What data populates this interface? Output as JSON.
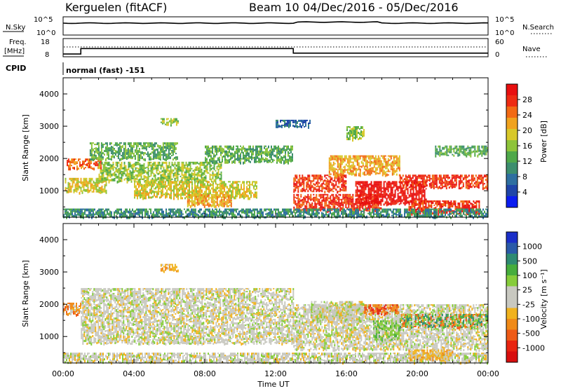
{
  "header": {
    "station": "Kerguelen (fitACF)",
    "beam": "Beam 10",
    "date_range": "04/Dec/2016 - 05/Dec/2016"
  },
  "nsky_panel": {
    "label": "N.Sky",
    "left_ticks": [
      "10^5",
      "10^0"
    ],
    "right_ticks": [
      "10^5",
      "10^0"
    ],
    "right_label": "N.Search"
  },
  "freq_panel": {
    "label_line1": "Freq.",
    "label_line2": "[MHz]",
    "left_ticks": [
      "18",
      "8"
    ],
    "right_ticks": [
      "60",
      "0"
    ],
    "right_label": "Nave"
  },
  "cpid": {
    "label": "CPID",
    "value": "normal (fast) -151"
  },
  "x_axis": {
    "ticks": [
      "00:00",
      "04:00",
      "08:00",
      "12:00",
      "16:00",
      "20:00",
      "00:00"
    ],
    "label": "Time UT"
  },
  "power_panel": {
    "ylabel": "Slant Range [km]",
    "yticks": [
      "4000",
      "3000",
      "2000",
      "1000"
    ],
    "colorbar_label": "Power [dB]",
    "colorbar_ticks": [
      "28",
      "24",
      "20",
      "16",
      "12",
      "8",
      "4"
    ],
    "colors": [
      "#0b1cf0",
      "#1f45a8",
      "#2e6fa0",
      "#3c8e6e",
      "#4fa84a",
      "#8ec43a",
      "#d8c82a",
      "#f0a21e",
      "#f26a14",
      "#ee2b12",
      "#e80f0f"
    ]
  },
  "velocity_panel": {
    "ylabel": "Slant Range [km]",
    "yticks": [
      "4000",
      "3000",
      "2000",
      "1000"
    ],
    "colorbar_label": "Velocity [m s⁻¹]",
    "colorbar_ticks": [
      "1000",
      "500",
      "100",
      "25",
      "-25",
      "-100",
      "-500",
      "-1000"
    ],
    "colors": [
      "#1b2fc8",
      "#2a5aa8",
      "#2e8a72",
      "#46ad3c",
      "#86cc3a",
      "#c8c8c0",
      "#c8c8c0",
      "#f0b21e",
      "#f08a18",
      "#ee5a16",
      "#e82410",
      "#d80e0e"
    ]
  },
  "chart_data": {
    "type": "heatmap",
    "title": "Kerguelen (fitACF) Beam 10 04/Dec/2016 - 05/Dec/2016",
    "xlabel": "Time UT",
    "ylabel": "Slant Range [km]",
    "xlim_hours": [
      0,
      24
    ],
    "ylim_km": [
      180,
      4500
    ],
    "frequency_mhz": [
      {
        "from_hour": 0,
        "to_hour": 1,
        "value": 9.5
      },
      {
        "from_hour": 1,
        "to_hour": 13,
        "value": 12.5
      },
      {
        "from_hour": 13,
        "to_hour": 24,
        "value": 10
      }
    ],
    "power_regions": [
      {
        "t0": 0.2,
        "t1": 2.2,
        "r0": 1700,
        "r1": 2000,
        "level": 8
      },
      {
        "t0": 0.1,
        "t1": 2.5,
        "r0": 950,
        "r1": 1400,
        "level": 6
      },
      {
        "t0": 1.5,
        "t1": 6.5,
        "r0": 2000,
        "r1": 2500,
        "level": 4
      },
      {
        "t0": 2,
        "t1": 9,
        "r0": 1300,
        "r1": 1900,
        "level": 5
      },
      {
        "t0": 4,
        "t1": 11,
        "r0": 800,
        "r1": 1300,
        "level": 6
      },
      {
        "t0": 7,
        "t1": 9.5,
        "r0": 550,
        "r1": 900,
        "level": 7
      },
      {
        "t0": 8,
        "t1": 13,
        "r0": 1900,
        "r1": 2400,
        "level": 4
      },
      {
        "t0": 13,
        "t1": 16,
        "r0": 1000,
        "r1": 1500,
        "level": 9
      },
      {
        "t0": 13,
        "t1": 18,
        "r0": 400,
        "r1": 900,
        "level": 9
      },
      {
        "t0": 15,
        "t1": 19,
        "r0": 1500,
        "r1": 2100,
        "level": 7
      },
      {
        "t0": 16.5,
        "t1": 20.5,
        "r0": 600,
        "r1": 1300,
        "level": 10
      },
      {
        "t0": 19,
        "t1": 24,
        "r0": 1100,
        "r1": 1500,
        "level": 9
      },
      {
        "t0": 19.5,
        "t1": 23.5,
        "r0": 300,
        "r1": 700,
        "level": 9
      },
      {
        "t0": 21,
        "t1": 24,
        "r0": 2100,
        "r1": 2400,
        "level": 4
      },
      {
        "t0": 0,
        "t1": 24,
        "r0": 200,
        "r1": 450,
        "level": 3
      },
      {
        "t0": 12,
        "t1": 14,
        "r0": 3000,
        "r1": 3200,
        "level": 2
      },
      {
        "t0": 5.5,
        "t1": 6.5,
        "r0": 3050,
        "r1": 3250,
        "level": 5
      },
      {
        "t0": 16,
        "t1": 17,
        "r0": 2600,
        "r1": 3000,
        "level": 5
      }
    ],
    "velocity_regions": [
      {
        "t0": 1,
        "t1": 13,
        "r0": 800,
        "r1": 2500,
        "class": "low"
      },
      {
        "t0": 0,
        "t1": 1,
        "r0": 1700,
        "r1": 2050,
        "class": "toward_mid"
      },
      {
        "t0": 0,
        "t1": 24,
        "r0": 200,
        "r1": 500,
        "class": "low"
      },
      {
        "t0": 13,
        "t1": 24,
        "r0": 600,
        "r1": 2000,
        "class": "low"
      },
      {
        "t0": 17,
        "t1": 19,
        "r0": 1700,
        "r1": 2000,
        "class": "away_mid"
      },
      {
        "t0": 19,
        "t1": 24,
        "r0": 1300,
        "r1": 1700,
        "class": "mixed"
      },
      {
        "t0": 17.5,
        "t1": 19,
        "r0": 900,
        "r1": 1500,
        "class": "toward_low"
      },
      {
        "t0": 14,
        "t1": 17,
        "r0": 1500,
        "r1": 2100,
        "class": "low"
      },
      {
        "t0": 5.5,
        "t1": 6.5,
        "r0": 3050,
        "r1": 3250,
        "class": "away_low"
      },
      {
        "t0": 19.5,
        "t1": 22,
        "r0": 300,
        "r1": 600,
        "class": "away_low"
      }
    ]
  }
}
